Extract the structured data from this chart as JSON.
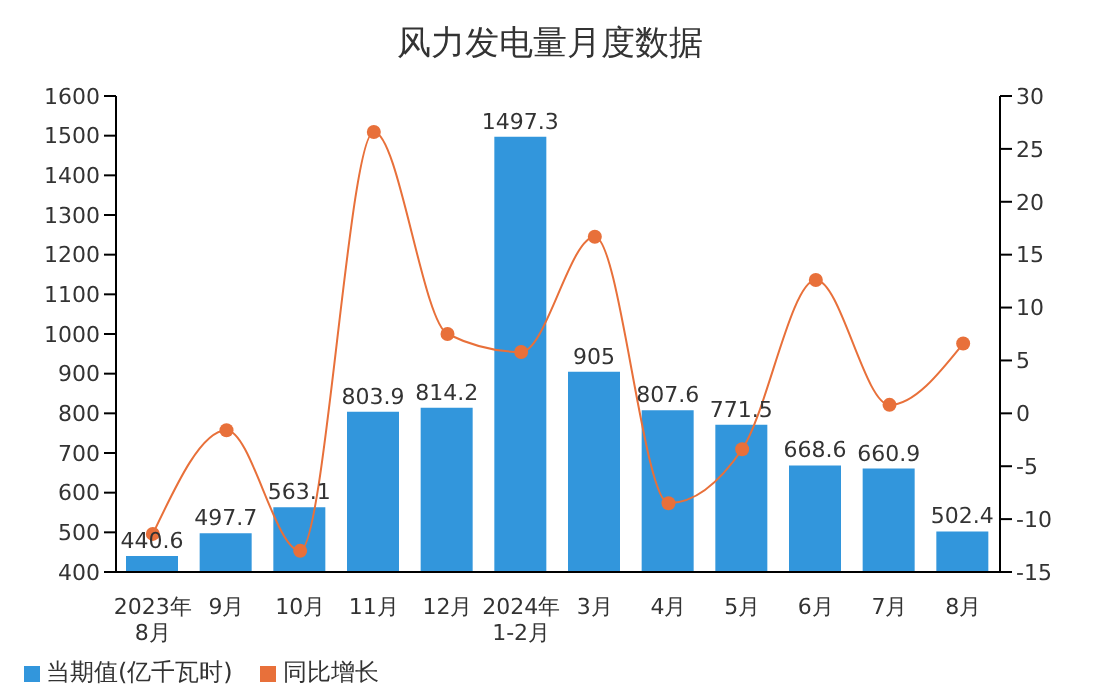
{
  "chart_data": {
    "type": "bar",
    "title": "风力发电量月度数据",
    "categories": [
      "2023年\n8月",
      "9月",
      "10月",
      "11月",
      "12月",
      "2024年\n1-2月",
      "3月",
      "4月",
      "5月",
      "6月",
      "7月",
      "8月"
    ],
    "series": [
      {
        "name": "当期值(亿千瓦时)",
        "color": "#3296dc",
        "values": [
          440.6,
          497.7,
          563.1,
          803.9,
          814.2,
          1497.3,
          905,
          807.6,
          771.5,
          668.6,
          660.9,
          502.4
        ],
        "value_labels": [
          "440.6",
          "497.7",
          "563.1",
          "803.9",
          "814.2",
          "1497.3",
          "905",
          "807.6",
          "771.5",
          "668.6",
          "660.9",
          "502.4"
        ]
      },
      {
        "name": "同比增长",
        "type": "line",
        "axis": "y2",
        "color": "#e8703a",
        "marker": "circle",
        "values": [
          -11.4,
          -1.6,
          -13,
          26.6,
          7.5,
          5.8,
          16.7,
          -8.5,
          -3.4,
          12.6,
          0.8,
          6.6
        ]
      }
    ],
    "ylim": [
      400,
      1600
    ],
    "yticks": [
      400,
      500,
      600,
      700,
      800,
      900,
      1000,
      1100,
      1200,
      1300,
      1400,
      1500,
      1600
    ],
    "y2lim": [
      -15,
      30
    ],
    "y2ticks": [
      -15,
      -10,
      -5,
      0,
      5,
      10,
      15,
      20,
      25,
      30
    ],
    "grid": false,
    "legend": "bottom left"
  }
}
